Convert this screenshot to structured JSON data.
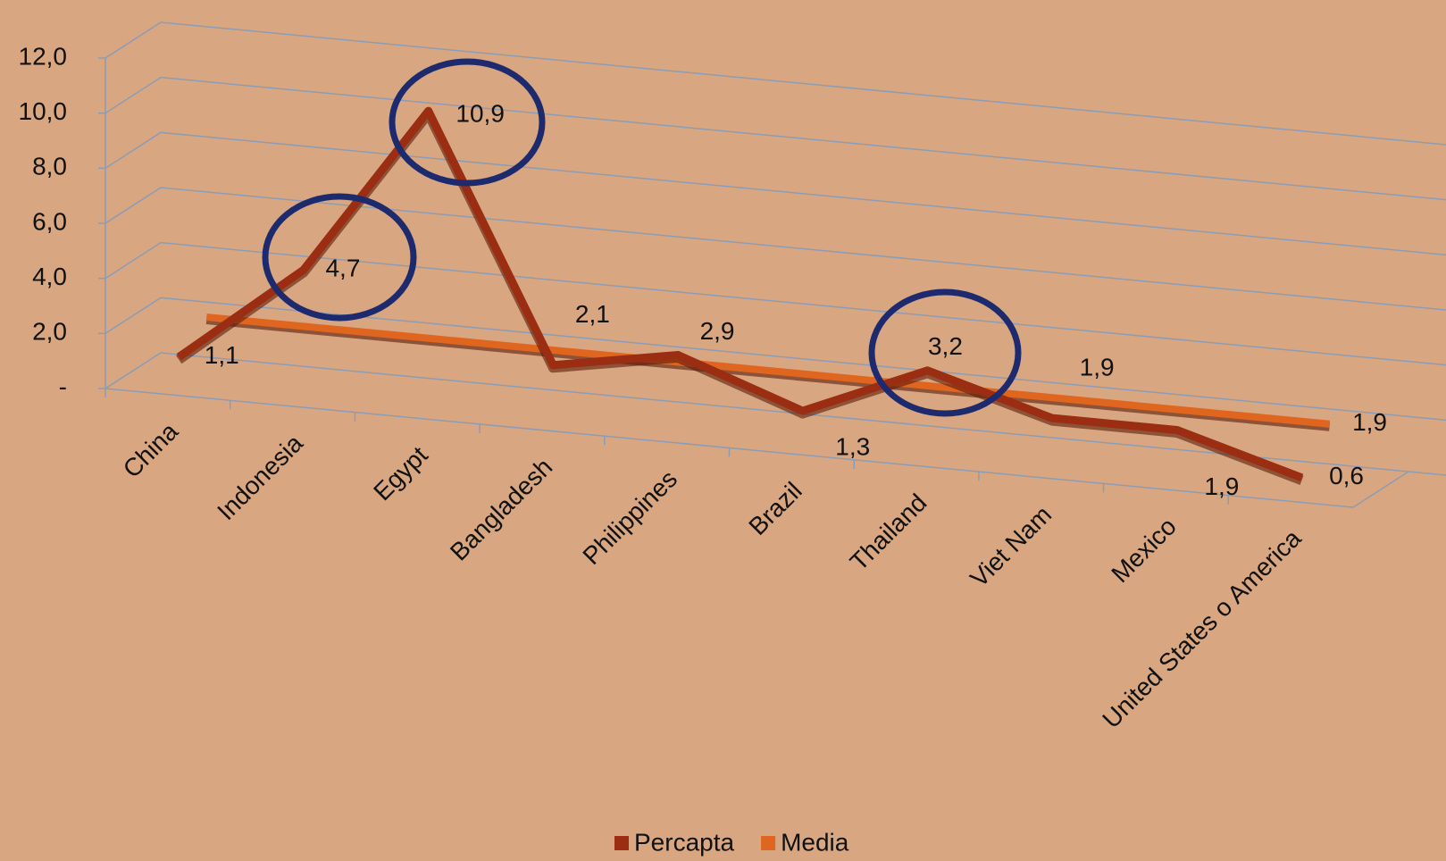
{
  "chart_data": {
    "type": "line3d",
    "categories": [
      "China",
      "Indonesia",
      "Egypt",
      "Bangladesh",
      "Philippines",
      "Brazil",
      "Thailand",
      "Viet Nam",
      "Mexico",
      "United States o America"
    ],
    "series": [
      {
        "name": "Percapta",
        "color": "#9b2d13",
        "values": [
          1.1,
          4.7,
          10.9,
          2.1,
          2.9,
          1.3,
          3.2,
          1.9,
          1.9,
          0.6
        ],
        "value_labels": [
          "1,1",
          "4,7",
          "10,9",
          "2,1",
          "2,9",
          "1,3",
          "3,2",
          "1,9",
          "1,9",
          "0,6"
        ]
      },
      {
        "name": "Media",
        "color": "#e0651e",
        "values": [
          1.9,
          1.9,
          1.9,
          1.9,
          1.9,
          1.9,
          1.9,
          1.9,
          1.9,
          1.9
        ],
        "value_labels": [
          null,
          null,
          null,
          null,
          null,
          null,
          null,
          null,
          null,
          "1,9"
        ]
      }
    ],
    "ylim": [
      0,
      12
    ],
    "yticks": [
      {
        "value": 0,
        "label": "-"
      },
      {
        "value": 2,
        "label": "2,0"
      },
      {
        "value": 4,
        "label": "4,0"
      },
      {
        "value": 6,
        "label": "6,0"
      },
      {
        "value": 8,
        "label": "8,0"
      },
      {
        "value": 10,
        "label": "10,0"
      },
      {
        "value": 12,
        "label": "12,0"
      }
    ],
    "grid": true
  }
}
